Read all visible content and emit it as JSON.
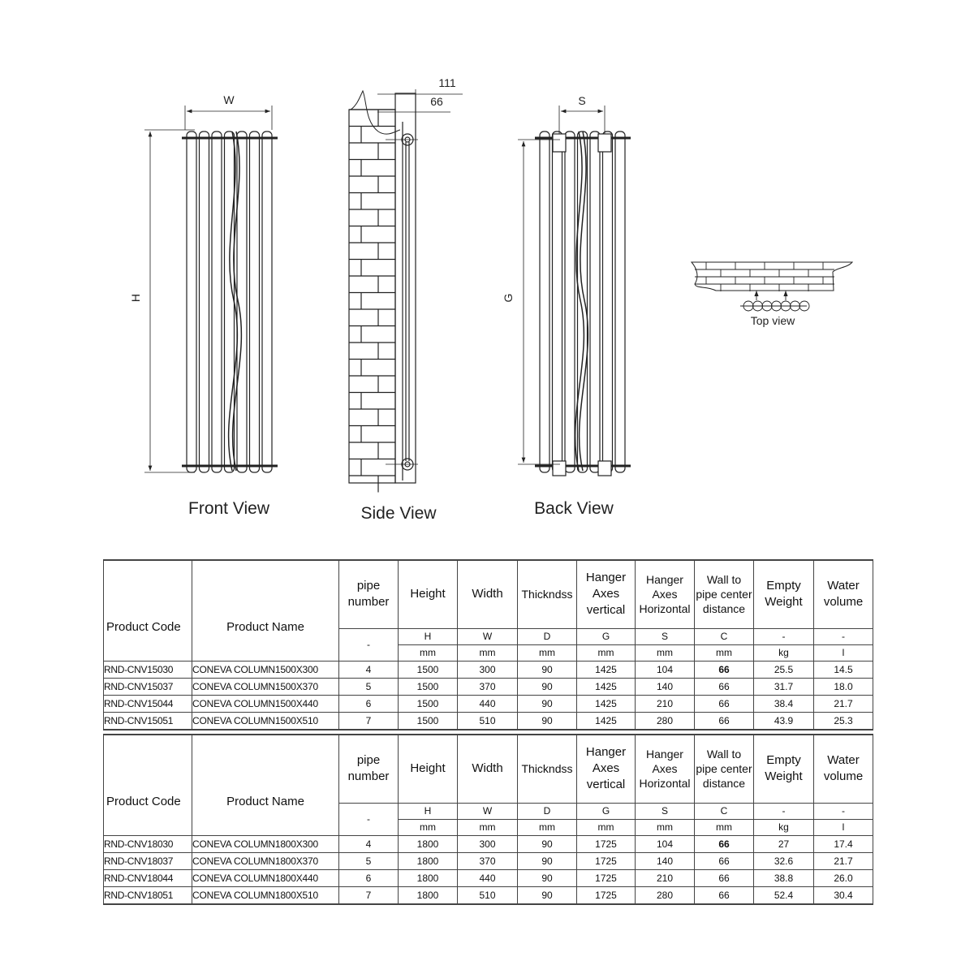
{
  "drawings": {
    "front_view": {
      "label": "Front View",
      "dim_width": "W",
      "dim_height": "H"
    },
    "side_view": {
      "label": "Side View",
      "dim_outer": "111",
      "dim_inner": "66"
    },
    "back_view": {
      "label": "Back View",
      "dim_hanger_horizontal": "S",
      "dim_hanger_vertical": "G"
    },
    "top_view": {
      "label": "Top view"
    }
  },
  "columns": [
    {
      "label": "Product Code",
      "symbol": null,
      "unit": null
    },
    {
      "label": "Product Name",
      "symbol": null,
      "unit": null
    },
    {
      "label": "pipe number",
      "symbol": "-",
      "unit": null
    },
    {
      "label": "Height",
      "symbol": "H",
      "unit": "mm"
    },
    {
      "label": "Width",
      "symbol": "W",
      "unit": "mm"
    },
    {
      "label": "Thickndss",
      "symbol": "D",
      "unit": "mm"
    },
    {
      "label": "Hanger Axes vertical",
      "symbol": "G",
      "unit": "mm"
    },
    {
      "label": "Hanger Axes Horizontal",
      "symbol": "S",
      "unit": "mm"
    },
    {
      "label": "Wall to pipe center distance",
      "symbol": "C",
      "unit": "mm"
    },
    {
      "label": "Empty Weight",
      "symbol": "-",
      "unit": "kg"
    },
    {
      "label": "Water volume",
      "symbol": "-",
      "unit": "l"
    }
  ],
  "tables": [
    {
      "rows": [
        [
          "RND-CNV15030",
          "CONEVA COLUMN1500X300",
          "4",
          "1500",
          "300",
          "90",
          "1425",
          "104",
          "66",
          "25.5",
          "14.5"
        ],
        [
          "RND-CNV15037",
          "CONEVA COLUMN1500X370",
          "5",
          "1500",
          "370",
          "90",
          "1425",
          "140",
          "66",
          "31.7",
          "18.0"
        ],
        [
          "RND-CNV15044",
          "CONEVA COLUMN1500X440",
          "6",
          "1500",
          "440",
          "90",
          "1425",
          "210",
          "66",
          "38.4",
          "21.7"
        ],
        [
          "RND-CNV15051",
          "CONEVA COLUMN1500X510",
          "7",
          "1500",
          "510",
          "90",
          "1425",
          "280",
          "66",
          "43.9",
          "25.3"
        ]
      ]
    },
    {
      "rows": [
        [
          "RND-CNV18030",
          "CONEVA COLUMN1800X300",
          "4",
          "1800",
          "300",
          "90",
          "1725",
          "104",
          "66",
          "27",
          "17.4"
        ],
        [
          "RND-CNV18037",
          "CONEVA COLUMN1800X370",
          "5",
          "1800",
          "370",
          "90",
          "1725",
          "140",
          "66",
          "32.6",
          "21.7"
        ],
        [
          "RND-CNV18044",
          "CONEVA COLUMN1800X440",
          "6",
          "1800",
          "440",
          "90",
          "1725",
          "210",
          "66",
          "38.8",
          "26.0"
        ],
        [
          "RND-CNV18051",
          "CONEVA COLUMN1800X510",
          "7",
          "1800",
          "510",
          "90",
          "1725",
          "280",
          "66",
          "52.4",
          "30.4"
        ]
      ]
    }
  ]
}
